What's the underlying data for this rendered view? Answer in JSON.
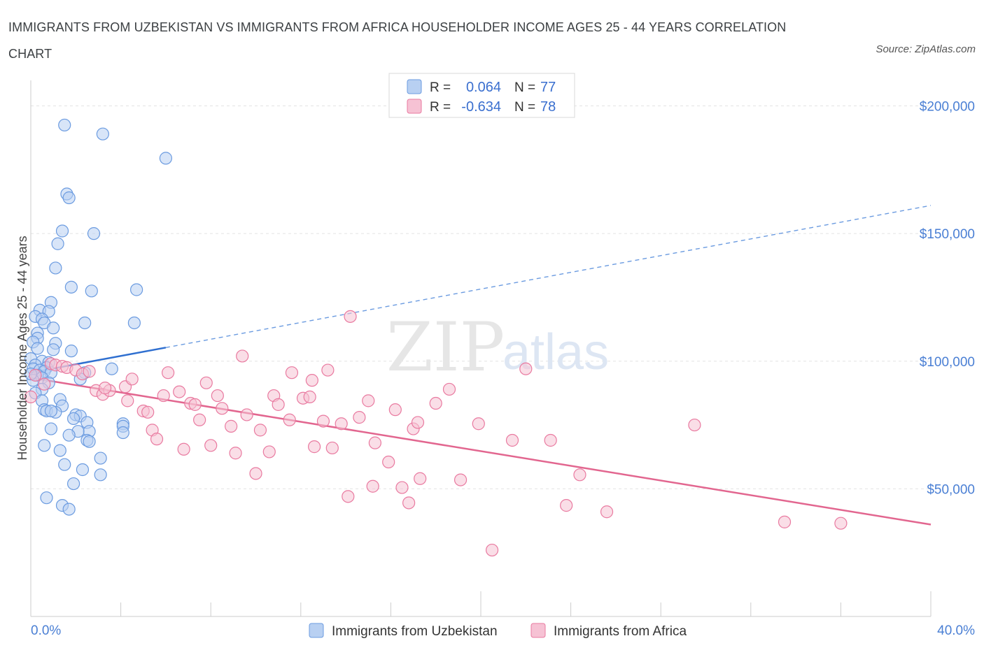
{
  "chart_data": {
    "type": "scatter",
    "title": "IMMIGRANTS FROM UZBEKISTAN VS IMMIGRANTS FROM AFRICA HOUSEHOLDER INCOME AGES 25 - 44 YEARS CORRELATION CHART",
    "source": "Source: ZipAtlas.com",
    "ylabel": "Householder Income Ages 25 - 44 years",
    "xlim": [
      0,
      40
    ],
    "ylim": [
      0,
      210000
    ],
    "x_tick_labels": [
      "0.0%",
      "40.0%"
    ],
    "y_ticks": [
      50000,
      100000,
      150000,
      200000
    ],
    "y_tick_labels": [
      "$50,000",
      "$100,000",
      "$150,000",
      "$200,000"
    ],
    "watermark": {
      "part1": "ZIP",
      "part2": "atlas"
    },
    "legend_stats": [
      {
        "r_label": "R =",
        "r_value": "0.064",
        "n_label": "N =",
        "n_value": "77"
      },
      {
        "r_label": "R =",
        "r_value": "-0.634",
        "n_label": "N =",
        "n_value": "78"
      }
    ],
    "series": [
      {
        "name": "Immigrants from Uzbekistan",
        "color": "#6b9be0",
        "fill": "#b8d0f2",
        "trend": {
          "x0": 0,
          "y0": 95500,
          "x1": 40,
          "y1": 161000,
          "solid_until_x": 6
        },
        "points": [
          [
            1.5,
            192500
          ],
          [
            3.2,
            189000
          ],
          [
            6.0,
            179500
          ],
          [
            1.6,
            165500
          ],
          [
            1.7,
            164000
          ],
          [
            1.4,
            151000
          ],
          [
            2.8,
            150000
          ],
          [
            1.2,
            146000
          ],
          [
            1.1,
            136500
          ],
          [
            1.8,
            129000
          ],
          [
            2.7,
            127500
          ],
          [
            4.7,
            128000
          ],
          [
            0.9,
            123000
          ],
          [
            0.4,
            120000
          ],
          [
            0.8,
            119500
          ],
          [
            0.2,
            117500
          ],
          [
            0.5,
            116500
          ],
          [
            0.6,
            115000
          ],
          [
            2.4,
            115000
          ],
          [
            4.6,
            115000
          ],
          [
            1.0,
            113000
          ],
          [
            0.3,
            111000
          ],
          [
            0.3,
            109000
          ],
          [
            0.1,
            107500
          ],
          [
            1.1,
            107000
          ],
          [
            0.3,
            105000
          ],
          [
            1.0,
            104500
          ],
          [
            1.8,
            104000
          ],
          [
            0.0,
            101000
          ],
          [
            0.5,
            100000
          ],
          [
            0.8,
            99500
          ],
          [
            0.2,
            98500
          ],
          [
            0.7,
            97500
          ],
          [
            0.1,
            97000
          ],
          [
            0.4,
            96500
          ],
          [
            3.6,
            97000
          ],
          [
            0.6,
            96000
          ],
          [
            0.9,
            95500
          ],
          [
            2.4,
            95500
          ],
          [
            0.3,
            94500
          ],
          [
            0.5,
            93500
          ],
          [
            2.2,
            93000
          ],
          [
            0.1,
            92500
          ],
          [
            0.8,
            91500
          ],
          [
            0.5,
            89000
          ],
          [
            0.2,
            87500
          ],
          [
            1.3,
            85000
          ],
          [
            0.5,
            84500
          ],
          [
            1.4,
            82500
          ],
          [
            0.6,
            81000
          ],
          [
            0.7,
            80500
          ],
          [
            1.1,
            80000
          ],
          [
            0.9,
            80500
          ],
          [
            2.0,
            79000
          ],
          [
            2.2,
            78500
          ],
          [
            1.9,
            77500
          ],
          [
            2.5,
            76000
          ],
          [
            4.1,
            75500
          ],
          [
            4.1,
            74500
          ],
          [
            0.9,
            73500
          ],
          [
            2.6,
            72500
          ],
          [
            4.1,
            72000
          ],
          [
            2.1,
            72500
          ],
          [
            1.7,
            71000
          ],
          [
            2.5,
            69000
          ],
          [
            2.6,
            68500
          ],
          [
            0.6,
            67000
          ],
          [
            1.3,
            65000
          ],
          [
            3.1,
            62000
          ],
          [
            1.5,
            59500
          ],
          [
            2.3,
            57500
          ],
          [
            3.1,
            55500
          ],
          [
            1.9,
            52000
          ],
          [
            0.7,
            46500
          ],
          [
            1.4,
            43500
          ],
          [
            1.7,
            42000
          ],
          [
            0.0,
            95000
          ]
        ]
      },
      {
        "name": "Immigrants from Africa",
        "color": "#e97aa0",
        "fill": "#f6c2d4",
        "trend": {
          "x0": 0,
          "y0": 93500,
          "x1": 40,
          "y1": 36000
        },
        "points": [
          [
            0.0,
            86000
          ],
          [
            0.6,
            91000
          ],
          [
            0.9,
            99000
          ],
          [
            1.1,
            98500
          ],
          [
            1.4,
            98000
          ],
          [
            1.6,
            97500
          ],
          [
            2.0,
            96500
          ],
          [
            2.3,
            95000
          ],
          [
            2.6,
            96000
          ],
          [
            2.9,
            88500
          ],
          [
            3.2,
            87000
          ],
          [
            3.5,
            88500
          ],
          [
            3.3,
            89500
          ],
          [
            4.2,
            90000
          ],
          [
            4.5,
            93000
          ],
          [
            4.3,
            84500
          ],
          [
            5.0,
            80500
          ],
          [
            5.2,
            80000
          ],
          [
            5.4,
            73000
          ],
          [
            5.6,
            69500
          ],
          [
            5.9,
            86500
          ],
          [
            6.1,
            95500
          ],
          [
            6.6,
            88000
          ],
          [
            6.8,
            65500
          ],
          [
            7.1,
            83500
          ],
          [
            7.3,
            83000
          ],
          [
            7.5,
            77000
          ],
          [
            7.8,
            91500
          ],
          [
            8.0,
            67000
          ],
          [
            8.3,
            86500
          ],
          [
            8.5,
            81500
          ],
          [
            8.9,
            74500
          ],
          [
            9.1,
            64000
          ],
          [
            9.4,
            102000
          ],
          [
            9.6,
            79000
          ],
          [
            10.0,
            56000
          ],
          [
            10.2,
            73000
          ],
          [
            10.6,
            64500
          ],
          [
            10.8,
            86500
          ],
          [
            11.0,
            83000
          ],
          [
            11.5,
            77000
          ],
          [
            11.6,
            95500
          ],
          [
            12.1,
            85500
          ],
          [
            12.4,
            86000
          ],
          [
            12.5,
            92500
          ],
          [
            12.6,
            66500
          ],
          [
            13.0,
            76500
          ],
          [
            13.2,
            96500
          ],
          [
            13.4,
            66000
          ],
          [
            13.8,
            75500
          ],
          [
            14.1,
            47000
          ],
          [
            14.2,
            117500
          ],
          [
            14.6,
            78000
          ],
          [
            15.0,
            84500
          ],
          [
            15.3,
            68000
          ],
          [
            15.2,
            51000
          ],
          [
            15.9,
            60500
          ],
          [
            16.2,
            81000
          ],
          [
            16.5,
            50500
          ],
          [
            16.8,
            44500
          ],
          [
            17.0,
            73500
          ],
          [
            17.2,
            76000
          ],
          [
            17.3,
            54000
          ],
          [
            18.0,
            83500
          ],
          [
            18.6,
            89000
          ],
          [
            19.1,
            53500
          ],
          [
            19.9,
            75500
          ],
          [
            20.5,
            26000
          ],
          [
            21.4,
            69000
          ],
          [
            22.0,
            97000
          ],
          [
            23.1,
            69000
          ],
          [
            23.8,
            43500
          ],
          [
            24.4,
            55500
          ],
          [
            25.6,
            41000
          ],
          [
            29.5,
            75000
          ],
          [
            33.5,
            37000
          ],
          [
            36.0,
            36500
          ],
          [
            0.2,
            94500
          ]
        ]
      }
    ]
  }
}
